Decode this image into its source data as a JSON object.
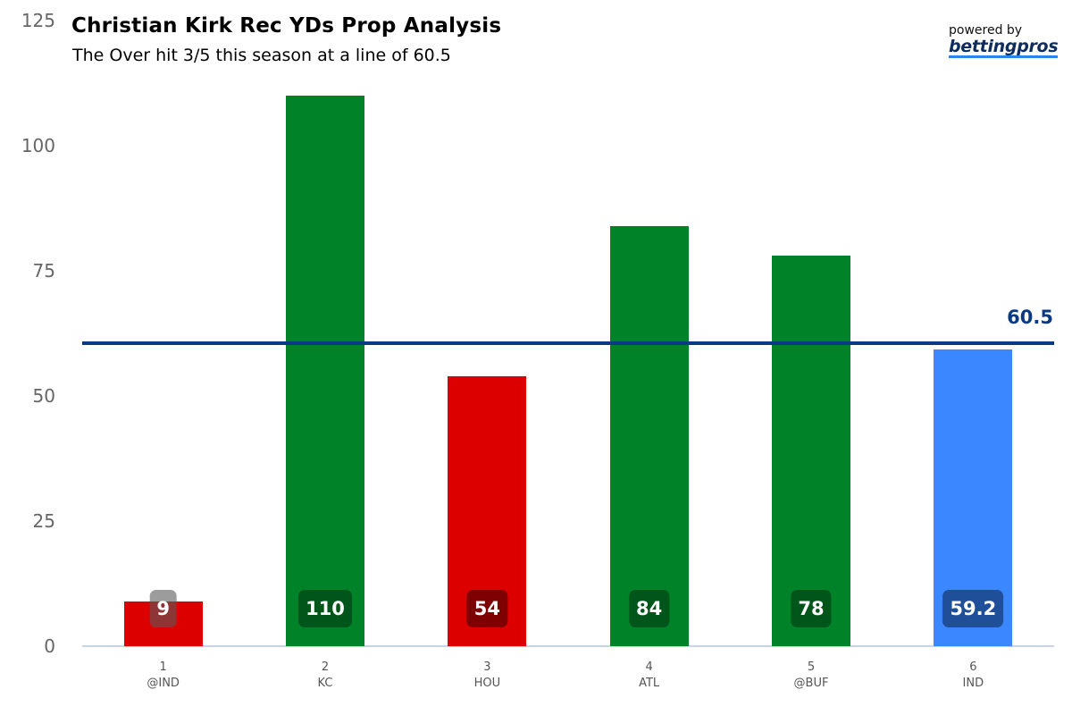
{
  "chart_data": {
    "type": "bar",
    "title": "Christian Kirk Rec YDs Prop Analysis",
    "subtitle": "The Over hit 3/5 this season at a line of 60.5",
    "xlabel": "",
    "ylabel": "",
    "ylim": [
      0,
      125
    ],
    "yticks": [
      0,
      25,
      50,
      75,
      100,
      125
    ],
    "grid": false,
    "legend": null,
    "categories": [
      "1 @IND",
      "2 KC",
      "3 HOU",
      "4 ATL",
      "5 @BUF",
      "6 IND"
    ],
    "games": [
      {
        "game": "1",
        "opponent": "@IND",
        "value": 9,
        "label": "9",
        "result": "under",
        "color": "#dd0000",
        "badge_color": "rgba(90,90,90,0.6)"
      },
      {
        "game": "2",
        "opponent": "KC",
        "value": 110,
        "label": "110",
        "result": "over",
        "color": "#008228",
        "badge_color": "#00561a"
      },
      {
        "game": "3",
        "opponent": "HOU",
        "value": 54,
        "label": "54",
        "result": "under",
        "color": "#dd0000",
        "badge_color": "#7f0000"
      },
      {
        "game": "4",
        "opponent": "ATL",
        "value": 84,
        "label": "84",
        "result": "over",
        "color": "#008228",
        "badge_color": "#00561a"
      },
      {
        "game": "5",
        "opponent": "@BUF",
        "value": 78,
        "label": "78",
        "result": "over",
        "color": "#008228",
        "badge_color": "#00561a"
      },
      {
        "game": "6",
        "opponent": "IND",
        "value": 59.2,
        "label": "59.2",
        "result": "projection",
        "color": "#3b87ff",
        "badge_color": "#1f4f99"
      }
    ],
    "values": [
      9,
      110,
      54,
      84,
      78,
      59.2
    ],
    "reference_line": {
      "value": 60.5,
      "label": "60.5",
      "color": "#0b3a85"
    }
  },
  "branding": {
    "powered_by": "powered by",
    "logo": "bettingpros"
  }
}
